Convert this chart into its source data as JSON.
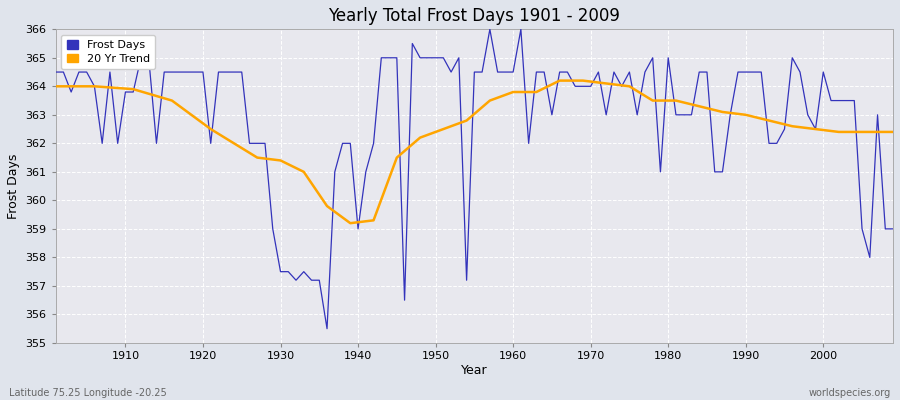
{
  "title": "Yearly Total Frost Days 1901 - 2009",
  "xlabel": "Year",
  "ylabel": "Frost Days",
  "ylim": [
    355,
    366
  ],
  "xlim": [
    1901,
    2009
  ],
  "line_color": "#3333bb",
  "trend_color": "#FFA500",
  "plot_bg_color": "#e8e8ee",
  "fig_bg_color": "#e0e4ec",
  "grid_color": "#ffffff",
  "grid_style": "--",
  "legend_labels": [
    "Frost Days",
    "20 Yr Trend"
  ],
  "bottom_left_text": "Latitude 75.25 Longitude -20.25",
  "bottom_right_text": "worldspecies.org",
  "frost_days": [
    364.5,
    364.5,
    363.8,
    364.5,
    364.5,
    364.0,
    362.0,
    364.5,
    362.0,
    363.8,
    363.8,
    365.0,
    365.0,
    362.0,
    364.5,
    364.5,
    364.5,
    364.5,
    364.5,
    364.5,
    362.0,
    364.5,
    364.5,
    364.5,
    364.5,
    362.0,
    362.0,
    362.0,
    359.0,
    357.5,
    357.5,
    357.2,
    357.5,
    357.2,
    357.2,
    355.5,
    361.0,
    362.0,
    362.0,
    359.0,
    361.0,
    362.0,
    365.0,
    365.0,
    365.0,
    356.5,
    365.5,
    365.0,
    365.0,
    365.0,
    365.0,
    364.5,
    365.0,
    357.2,
    364.5,
    364.5,
    366.0,
    364.5,
    364.5,
    364.5,
    366.0,
    362.0,
    364.5,
    364.5,
    363.0,
    364.5,
    364.5,
    364.0,
    364.0,
    364.0,
    364.5,
    363.0,
    364.5,
    364.0,
    364.5,
    363.0,
    364.5,
    365.0,
    361.0,
    365.0,
    363.0,
    363.0,
    363.0,
    364.5,
    364.5,
    361.0,
    361.0,
    363.0,
    364.5,
    364.5,
    364.5,
    364.5,
    362.0,
    362.0,
    362.5,
    365.0,
    364.5,
    363.0,
    362.5,
    364.5,
    363.5,
    363.5,
    363.5,
    363.5,
    359.0,
    358.0,
    363.0,
    359.0,
    359.0
  ],
  "trend_years": [
    1901,
    1906,
    1911,
    1916,
    1918,
    1921,
    1924,
    1927,
    1930,
    1933,
    1936,
    1939,
    1942,
    1945,
    1948,
    1951,
    1954,
    1957,
    1960,
    1963,
    1966,
    1969,
    1972,
    1975,
    1978,
    1981,
    1984,
    1987,
    1990,
    1993,
    1996,
    1999,
    2002,
    2005,
    2008,
    2009
  ],
  "trend_vals": [
    364.0,
    364.0,
    363.9,
    363.5,
    363.1,
    362.5,
    362.0,
    361.5,
    361.4,
    361.0,
    359.8,
    359.2,
    359.3,
    361.5,
    362.2,
    362.5,
    362.8,
    363.5,
    363.8,
    363.8,
    364.2,
    364.2,
    364.1,
    364.0,
    363.5,
    363.5,
    363.3,
    363.1,
    363.0,
    362.8,
    362.6,
    362.5,
    362.4,
    362.4,
    362.4,
    362.4
  ]
}
